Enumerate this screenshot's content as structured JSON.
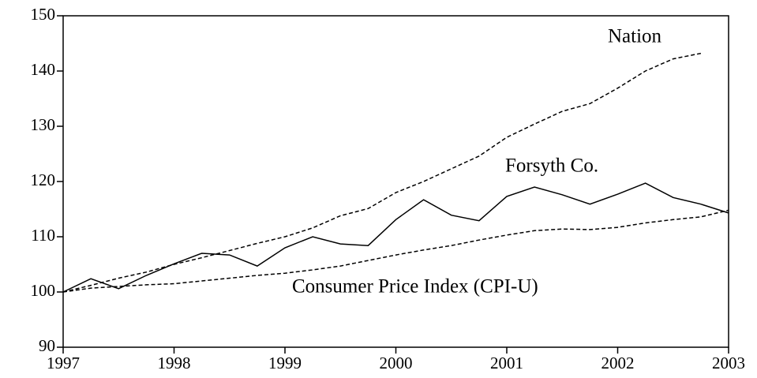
{
  "chart_data": {
    "type": "line",
    "x": [
      1997,
      1997.25,
      1997.5,
      1997.75,
      1998,
      1998.25,
      1998.5,
      1998.75,
      1999,
      1999.25,
      1999.5,
      1999.75,
      2000,
      2000.25,
      2000.5,
      2000.75,
      2001,
      2001.25,
      2001.5,
      2001.75,
      2002,
      2002.25,
      2002.5,
      2002.75,
      2003
    ],
    "series": [
      {
        "name": "Nation",
        "color": "#000000",
        "style": "dashed",
        "values": [
          100,
          101.2,
          102.5,
          103.6,
          105,
          106.2,
          107.5,
          108.8,
          110,
          111.6,
          113.8,
          115.1,
          118,
          120,
          122.3,
          124.6,
          128,
          130.4,
          132.7,
          134.1,
          136.9,
          140,
          142.2,
          143.2,
          null
        ]
      },
      {
        "name": "Forsyth Co.",
        "color": "#000000",
        "style": "solid",
        "values": [
          100,
          102.4,
          100.6,
          103,
          105.1,
          107,
          106.7,
          104.7,
          108,
          110,
          108.7,
          108.4,
          113.1,
          116.7,
          113.9,
          112.9,
          117.3,
          119,
          117.6,
          115.9,
          117.7,
          119.7,
          117.1,
          115.9,
          114.3
        ]
      },
      {
        "name": "Consumer Price Index (CPI-U)",
        "color": "#000000",
        "style": "dashed",
        "values": [
          100,
          100.7,
          101,
          101.3,
          101.5,
          102,
          102.5,
          103,
          103.4,
          104,
          104.7,
          105.7,
          106.7,
          107.6,
          108.4,
          109.4,
          110.3,
          111.1,
          111.4,
          111.3,
          111.7,
          112.5,
          113.1,
          113.6,
          114.8
        ]
      }
    ],
    "xlim": [
      1997,
      2003
    ],
    "xticks": [
      1997,
      1998,
      1999,
      2000,
      2001,
      2002,
      2003
    ],
    "ylim": [
      90,
      150
    ],
    "yticks": [
      90,
      100,
      110,
      120,
      130,
      140,
      150
    ],
    "grid": false
  }
}
